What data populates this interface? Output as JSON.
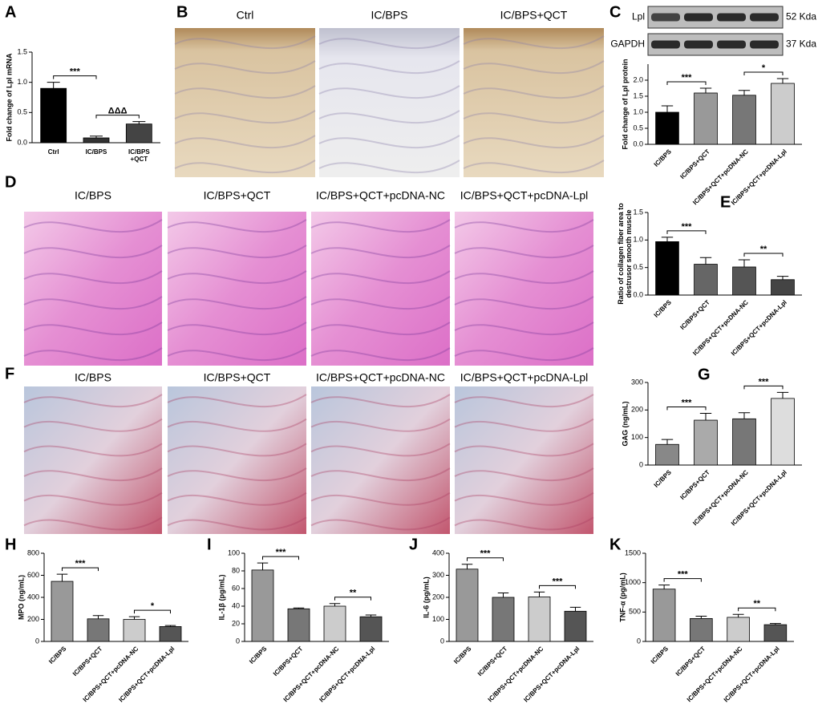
{
  "chart_data": [
    {
      "panel": "A",
      "type": "bar",
      "y_label": "Fold change of Lpl mRNA",
      "categories": [
        "Ctrl",
        "IC/BPS",
        "IC/BPS\n+QCT"
      ],
      "values": [
        0.9,
        0.08,
        0.31
      ],
      "errors": [
        0.1,
        0.03,
        0.04
      ],
      "colors": [
        "#000000",
        "#333333",
        "#444444"
      ],
      "ylim": [
        0,
        1.5
      ],
      "yticks": [
        {
          "value": 0,
          "label": "0.0"
        },
        0.5,
        {
          "value": 1,
          "label": "1.0"
        },
        1.5
      ],
      "significance": [
        "***",
        "ΔΔΔ"
      ]
    },
    {
      "panel": "C",
      "type": "bar",
      "y_label": "Fold change of Lpl protein",
      "categories": [
        "IC/BPS",
        "IC/BPS+QCT",
        "IC/BPS+QCT+pcDNA-NC",
        "IC/BPS+QCT+pcDNA-Lpl"
      ],
      "values": [
        1.0,
        1.6,
        1.53,
        1.9
      ],
      "errors": [
        0.2,
        0.15,
        0.15,
        0.15
      ],
      "colors": [
        "#000000",
        "#999999",
        "#777777",
        "#cccccc"
      ],
      "ylim": [
        0,
        2.5
      ],
      "yticks": [
        {
          "value": 0,
          "label": "0.0"
        },
        0.5,
        {
          "value": 1,
          "label": "1.0"
        },
        1.5,
        {
          "value": 2,
          "label": "2.0"
        }
      ],
      "significance": [
        "***",
        "*"
      ]
    },
    {
      "panel": "E",
      "type": "bar",
      "y_label": "Ratio of collagen fiber area to\ndestrusor smooth muscle",
      "categories": [
        "IC/BPS",
        "IC/BPS+QCT",
        "IC/BPS+QCT+pcDNA-NC",
        "IC/BPS+QCT+pcDNA-Lpl"
      ],
      "values": [
        0.97,
        0.56,
        0.51,
        0.28
      ],
      "errors": [
        0.08,
        0.12,
        0.13,
        0.06
      ],
      "colors": [
        "#000000",
        "#666666",
        "#555555",
        "#444444"
      ],
      "ylim": [
        0,
        1.5
      ],
      "yticks": [
        {
          "value": 0,
          "label": "0.0"
        },
        0.5,
        {
          "value": 1,
          "label": "1.0"
        },
        1.5
      ],
      "significance": [
        "***",
        "**"
      ]
    },
    {
      "panel": "G",
      "type": "bar",
      "y_label": "GAG (ng/mL)",
      "categories": [
        "IC/BPS",
        "IC/BPS+QCT",
        "IC/BPS+QCT+pcDNA-NC",
        "IC/BPS+QCT+pcDNA-Lpl"
      ],
      "values": [
        75,
        163,
        168,
        242
      ],
      "errors": [
        18,
        25,
        22,
        22
      ],
      "colors": [
        "#888888",
        "#aaaaaa",
        "#777777",
        "#dddddd"
      ],
      "ylim": [
        0,
        300
      ],
      "yticks": [
        0,
        100,
        200,
        300
      ],
      "significance": [
        "***",
        "***"
      ]
    },
    {
      "panel": "H",
      "type": "bar",
      "y_label": "MPO (ng/mL)",
      "categories": [
        "IC/BPS",
        "IC/BPS+QCT",
        "IC/BPS+QCT+pcDNA-NC",
        "IC/BPS+QCT+pcDNA-Lpl"
      ],
      "values": [
        545,
        205,
        200,
        135
      ],
      "errors": [
        65,
        30,
        25,
        10
      ],
      "colors": [
        "#999999",
        "#777777",
        "#cccccc",
        "#555555"
      ],
      "ylim": [
        0,
        800
      ],
      "yticks": [
        0,
        200,
        400,
        600,
        800
      ],
      "significance": [
        "***",
        "*"
      ]
    },
    {
      "panel": "I",
      "type": "bar",
      "y_label": "IL-1β (pg/mL)",
      "categories": [
        "IC/BPS",
        "IC/BPS+QCT",
        "IC/BPS+QCT+pcDNA-NC",
        "IC/BPS+QCT+pcDNA-Lpl"
      ],
      "values": [
        81,
        37,
        40,
        28
      ],
      "errors": [
        8,
        1,
        3,
        2
      ],
      "colors": [
        "#999999",
        "#777777",
        "#cccccc",
        "#555555"
      ],
      "ylim": [
        0,
        100
      ],
      "yticks": [
        0,
        20,
        40,
        60,
        80,
        100
      ],
      "significance": [
        "***",
        "**"
      ]
    },
    {
      "panel": "J",
      "type": "bar",
      "y_label": "IL-6 (pg/mL)",
      "categories": [
        "IC/BPS",
        "IC/BPS+QCT",
        "IC/BPS+QCT+pcDNA-NC",
        "IC/BPS+QCT+pcDNA-Lpl"
      ],
      "values": [
        328,
        200,
        202,
        137
      ],
      "errors": [
        22,
        20,
        22,
        18
      ],
      "colors": [
        "#999999",
        "#777777",
        "#cccccc",
        "#555555"
      ],
      "ylim": [
        0,
        400
      ],
      "yticks": [
        0,
        100,
        200,
        300,
        400
      ],
      "significance": [
        "***",
        "***"
      ]
    },
    {
      "panel": "K",
      "type": "bar",
      "y_label": "TNF-α (pg/mL)",
      "categories": [
        "IC/BPS",
        "IC/BPS+QCT",
        "IC/BPS+QCT+pcDNA-NC",
        "IC/BPS+QCT+pcDNA-Lpl"
      ],
      "values": [
        890,
        390,
        410,
        285
      ],
      "errors": [
        70,
        40,
        50,
        20
      ],
      "colors": [
        "#999999",
        "#777777",
        "#cccccc",
        "#555555"
      ],
      "ylim": [
        0,
        1500
      ],
      "yticks": [
        0,
        500,
        1000,
        1500
      ],
      "significance": [
        "***",
        "**"
      ]
    }
  ],
  "blot": {
    "bands": [
      "Lpl",
      "GAPDH"
    ],
    "sizes": [
      "52 Kda",
      "37 Kda"
    ]
  },
  "images": [
    {
      "panel": "B",
      "labels": [
        "Ctrl",
        "IC/BPS",
        "IC/BPS+QCT"
      ]
    },
    {
      "panel": "D",
      "labels": [
        "IC/BPS",
        "IC/BPS+QCT",
        "IC/BPS+QCT+pcDNA-NC",
        "IC/BPS+QCT+pcDNA-Lpl"
      ]
    },
    {
      "panel": "F",
      "labels": [
        "IC/BPS",
        "IC/BPS+QCT",
        "IC/BPS+QCT+pcDNA-NC",
        "IC/BPS+QCT+pcDNA-Lpl"
      ]
    }
  ]
}
